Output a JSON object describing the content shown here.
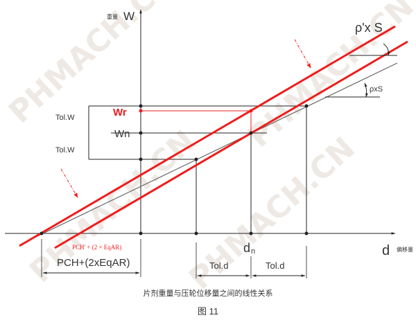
{
  "watermark": "PHMACH.CN",
  "axes": {
    "y_label_cn": "重量",
    "y_label": "W",
    "x_label": "d",
    "x_label_cn": "偏移量"
  },
  "labels": {
    "wr": "Wr",
    "wn": "Wn",
    "tol_w_upper": "Tol.W",
    "tol_w_lower": "Tol.W",
    "dn_main": "d",
    "dn_sub": "n",
    "tol_d_left": "Tol.d",
    "tol_d_right": "Tol.d",
    "pch_red": "PCH' + (2 × EqAR)",
    "pch_black": "PCH+(2xEqAR)",
    "rho_prime_s": "ρ'x S",
    "rho_s": "ρxS"
  },
  "caption": "片剂重量与压轮位移量之间的线性关系",
  "figure_number": "图 11",
  "colors": {
    "red": "#ee1c1c",
    "black": "#222222",
    "gray": "#666666"
  }
}
